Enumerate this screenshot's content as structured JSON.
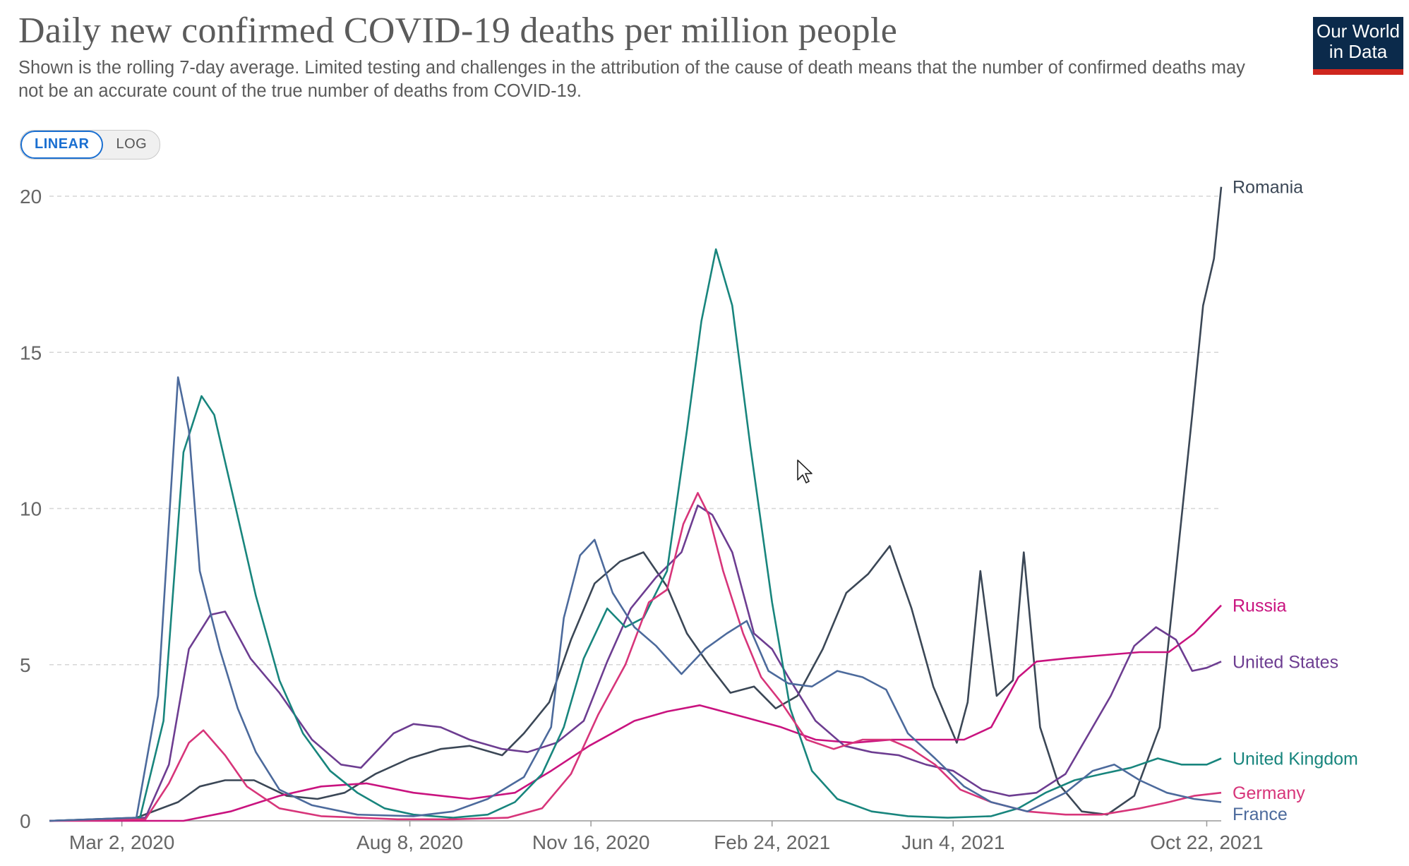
{
  "header": {
    "title": "Daily new confirmed COVID-19 deaths per million people",
    "subtitle": "Shown is the rolling 7-day average. Limited testing and challenges in the attribution of the cause of death means that the number of confirmed deaths may not be an accurate count of the true number of deaths from COVID-19.",
    "logo_line1": "Our World",
    "logo_line2": "in Data"
  },
  "controls": {
    "linear_label": "LINEAR",
    "log_label": "LOG",
    "selected": "LINEAR"
  },
  "chart_data": {
    "type": "line",
    "title": "Daily new confirmed COVID-19 deaths per million people",
    "xlabel": "",
    "ylabel": "",
    "x_range": [
      "2020-01-22",
      "2021-10-30"
    ],
    "ylim": [
      0,
      20
    ],
    "y_ticks": [
      0,
      5,
      10,
      15,
      20
    ],
    "x_ticks": [
      {
        "date": "2020-03-02",
        "label": "Mar 2, 2020"
      },
      {
        "date": "2020-08-08",
        "label": "Aug 8, 2020"
      },
      {
        "date": "2020-11-16",
        "label": "Nov 16, 2020"
      },
      {
        "date": "2021-02-24",
        "label": "Feb 24, 2021"
      },
      {
        "date": "2021-06-04",
        "label": "Jun 4, 2021"
      },
      {
        "date": "2021-10-22",
        "label": "Oct 22, 2021"
      }
    ],
    "grid": "horizontal dashed",
    "legend": "end-of-line labels",
    "series": [
      {
        "name": "Romania",
        "color": "#3b4756",
        "points": [
          [
            "2020-01-22",
            0
          ],
          [
            "2020-03-10",
            0.1
          ],
          [
            "2020-04-02",
            0.6
          ],
          [
            "2020-04-14",
            1.1
          ],
          [
            "2020-04-28",
            1.3
          ],
          [
            "2020-05-14",
            1.3
          ],
          [
            "2020-06-01",
            0.8
          ],
          [
            "2020-06-18",
            0.7
          ],
          [
            "2020-07-03",
            0.9
          ],
          [
            "2020-07-20",
            1.5
          ],
          [
            "2020-08-08",
            2.0
          ],
          [
            "2020-08-25",
            2.3
          ],
          [
            "2020-09-10",
            2.4
          ],
          [
            "2020-09-28",
            2.1
          ],
          [
            "2020-10-10",
            2.8
          ],
          [
            "2020-10-24",
            3.8
          ],
          [
            "2020-11-05",
            5.8
          ],
          [
            "2020-11-18",
            7.6
          ],
          [
            "2020-12-02",
            8.3
          ],
          [
            "2020-12-15",
            8.6
          ],
          [
            "2020-12-28",
            7.5
          ],
          [
            "2021-01-08",
            6.0
          ],
          [
            "2021-01-20",
            5.0
          ],
          [
            "2021-02-01",
            4.1
          ],
          [
            "2021-02-14",
            4.3
          ],
          [
            "2021-02-26",
            3.6
          ],
          [
            "2021-03-10",
            4.0
          ],
          [
            "2021-03-24",
            5.5
          ],
          [
            "2021-04-06",
            7.3
          ],
          [
            "2021-04-18",
            7.9
          ],
          [
            "2021-04-30",
            8.8
          ],
          [
            "2021-05-12",
            6.8
          ],
          [
            "2021-05-24",
            4.3
          ],
          [
            "2021-06-06",
            2.5
          ],
          [
            "2021-06-12",
            3.8
          ],
          [
            "2021-06-19",
            8.0
          ],
          [
            "2021-06-28",
            4.0
          ],
          [
            "2021-07-07",
            4.5
          ],
          [
            "2021-07-13",
            8.6
          ],
          [
            "2021-07-22",
            3.0
          ],
          [
            "2021-08-01",
            1.2
          ],
          [
            "2021-08-14",
            0.3
          ],
          [
            "2021-08-28",
            0.2
          ],
          [
            "2021-09-12",
            0.8
          ],
          [
            "2021-09-26",
            3.0
          ],
          [
            "2021-10-05",
            8.0
          ],
          [
            "2021-10-14",
            13.0
          ],
          [
            "2021-10-20",
            16.5
          ],
          [
            "2021-10-26",
            18.0
          ],
          [
            "2021-10-30",
            20.3
          ]
        ]
      },
      {
        "name": "Russia",
        "color": "#c9137f",
        "points": [
          [
            "2020-01-22",
            0
          ],
          [
            "2020-04-05",
            0
          ],
          [
            "2020-05-01",
            0.3
          ],
          [
            "2020-05-28",
            0.8
          ],
          [
            "2020-06-20",
            1.1
          ],
          [
            "2020-07-15",
            1.2
          ],
          [
            "2020-08-10",
            0.9
          ],
          [
            "2020-09-10",
            0.7
          ],
          [
            "2020-10-05",
            0.9
          ],
          [
            "2020-10-25",
            1.6
          ],
          [
            "2020-11-15",
            2.4
          ],
          [
            "2020-12-10",
            3.2
          ],
          [
            "2020-12-28",
            3.5
          ],
          [
            "2021-01-15",
            3.7
          ],
          [
            "2021-01-28",
            3.5
          ],
          [
            "2021-02-10",
            3.3
          ],
          [
            "2021-03-01",
            3.0
          ],
          [
            "2021-03-20",
            2.6
          ],
          [
            "2021-04-10",
            2.5
          ],
          [
            "2021-05-01",
            2.6
          ],
          [
            "2021-05-25",
            2.6
          ],
          [
            "2021-06-10",
            2.6
          ],
          [
            "2021-06-25",
            3.0
          ],
          [
            "2021-07-10",
            4.6
          ],
          [
            "2021-07-20",
            5.1
          ],
          [
            "2021-08-05",
            5.2
          ],
          [
            "2021-08-25",
            5.3
          ],
          [
            "2021-09-15",
            5.4
          ],
          [
            "2021-10-01",
            5.4
          ],
          [
            "2021-10-15",
            6.0
          ],
          [
            "2021-10-30",
            6.9
          ]
        ]
      },
      {
        "name": "United States",
        "color": "#6d3d91",
        "points": [
          [
            "2020-01-22",
            0
          ],
          [
            "2020-03-15",
            0.1
          ],
          [
            "2020-03-28",
            1.8
          ],
          [
            "2020-04-08",
            5.5
          ],
          [
            "2020-04-20",
            6.6
          ],
          [
            "2020-04-28",
            6.7
          ],
          [
            "2020-05-12",
            5.2
          ],
          [
            "2020-05-28",
            4.1
          ],
          [
            "2020-06-15",
            2.6
          ],
          [
            "2020-07-01",
            1.8
          ],
          [
            "2020-07-12",
            1.7
          ],
          [
            "2020-07-30",
            2.8
          ],
          [
            "2020-08-10",
            3.1
          ],
          [
            "2020-08-25",
            3.0
          ],
          [
            "2020-09-10",
            2.6
          ],
          [
            "2020-09-28",
            2.3
          ],
          [
            "2020-10-12",
            2.2
          ],
          [
            "2020-10-28",
            2.5
          ],
          [
            "2020-11-12",
            3.2
          ],
          [
            "2020-11-25",
            5.1
          ],
          [
            "2020-12-08",
            6.8
          ],
          [
            "2020-12-22",
            7.8
          ],
          [
            "2021-01-05",
            8.6
          ],
          [
            "2021-01-14",
            10.1
          ],
          [
            "2021-01-22",
            9.8
          ],
          [
            "2021-02-02",
            8.6
          ],
          [
            "2021-02-14",
            6.0
          ],
          [
            "2021-02-24",
            5.5
          ],
          [
            "2021-03-05",
            4.6
          ],
          [
            "2021-03-20",
            3.2
          ],
          [
            "2021-04-05",
            2.4
          ],
          [
            "2021-04-20",
            2.2
          ],
          [
            "2021-05-05",
            2.1
          ],
          [
            "2021-05-20",
            1.8
          ],
          [
            "2021-06-04",
            1.6
          ],
          [
            "2021-06-20",
            1.0
          ],
          [
            "2021-07-05",
            0.8
          ],
          [
            "2021-07-20",
            0.9
          ],
          [
            "2021-08-05",
            1.5
          ],
          [
            "2021-08-18",
            2.8
          ],
          [
            "2021-08-30",
            4.0
          ],
          [
            "2021-09-12",
            5.6
          ],
          [
            "2021-09-24",
            6.2
          ],
          [
            "2021-10-05",
            5.8
          ],
          [
            "2021-10-14",
            4.8
          ],
          [
            "2021-10-22",
            4.9
          ],
          [
            "2021-10-30",
            5.1
          ]
        ]
      },
      {
        "name": "United Kingdom",
        "color": "#18857d",
        "points": [
          [
            "2020-01-22",
            0
          ],
          [
            "2020-03-12",
            0.1
          ],
          [
            "2020-03-25",
            3.2
          ],
          [
            "2020-04-05",
            11.8
          ],
          [
            "2020-04-15",
            13.6
          ],
          [
            "2020-04-22",
            13.0
          ],
          [
            "2020-05-02",
            10.5
          ],
          [
            "2020-05-15",
            7.2
          ],
          [
            "2020-05-28",
            4.5
          ],
          [
            "2020-06-10",
            2.8
          ],
          [
            "2020-06-25",
            1.6
          ],
          [
            "2020-07-10",
            0.9
          ],
          [
            "2020-07-25",
            0.4
          ],
          [
            "2020-08-10",
            0.2
          ],
          [
            "2020-09-01",
            0.1
          ],
          [
            "2020-09-20",
            0.2
          ],
          [
            "2020-10-05",
            0.6
          ],
          [
            "2020-10-20",
            1.5
          ],
          [
            "2020-11-01",
            3.0
          ],
          [
            "2020-11-12",
            5.2
          ],
          [
            "2020-11-25",
            6.8
          ],
          [
            "2020-12-05",
            6.2
          ],
          [
            "2020-12-15",
            6.5
          ],
          [
            "2020-12-28",
            8.0
          ],
          [
            "2021-01-08",
            12.5
          ],
          [
            "2021-01-16",
            16.0
          ],
          [
            "2021-01-24",
            18.3
          ],
          [
            "2021-02-02",
            16.5
          ],
          [
            "2021-02-12",
            12.0
          ],
          [
            "2021-02-24",
            7.0
          ],
          [
            "2021-03-06",
            3.6
          ],
          [
            "2021-03-18",
            1.6
          ],
          [
            "2021-04-01",
            0.7
          ],
          [
            "2021-04-20",
            0.3
          ],
          [
            "2021-05-10",
            0.15
          ],
          [
            "2021-06-01",
            0.1
          ],
          [
            "2021-06-25",
            0.15
          ],
          [
            "2021-07-10",
            0.4
          ],
          [
            "2021-07-25",
            0.9
          ],
          [
            "2021-08-10",
            1.3
          ],
          [
            "2021-08-25",
            1.5
          ],
          [
            "2021-09-10",
            1.7
          ],
          [
            "2021-09-25",
            2.0
          ],
          [
            "2021-10-08",
            1.8
          ],
          [
            "2021-10-22",
            1.8
          ],
          [
            "2021-10-30",
            2.0
          ]
        ]
      },
      {
        "name": "Germany",
        "color": "#d7357a",
        "points": [
          [
            "2020-01-22",
            0
          ],
          [
            "2020-03-15",
            0.05
          ],
          [
            "2020-03-28",
            1.2
          ],
          [
            "2020-04-08",
            2.5
          ],
          [
            "2020-04-16",
            2.9
          ],
          [
            "2020-04-28",
            2.1
          ],
          [
            "2020-05-10",
            1.1
          ],
          [
            "2020-05-28",
            0.4
          ],
          [
            "2020-06-20",
            0.15
          ],
          [
            "2020-08-01",
            0.05
          ],
          [
            "2020-09-01",
            0.05
          ],
          [
            "2020-10-01",
            0.1
          ],
          [
            "2020-10-20",
            0.4
          ],
          [
            "2020-11-05",
            1.5
          ],
          [
            "2020-11-20",
            3.4
          ],
          [
            "2020-12-05",
            5.0
          ],
          [
            "2020-12-18",
            7.0
          ],
          [
            "2020-12-28",
            7.4
          ],
          [
            "2021-01-06",
            9.5
          ],
          [
            "2021-01-14",
            10.5
          ],
          [
            "2021-01-20",
            9.8
          ],
          [
            "2021-01-28",
            8.0
          ],
          [
            "2021-02-08",
            6.0
          ],
          [
            "2021-02-18",
            4.6
          ],
          [
            "2021-03-01",
            3.8
          ],
          [
            "2021-03-15",
            2.6
          ],
          [
            "2021-03-30",
            2.3
          ],
          [
            "2021-04-15",
            2.6
          ],
          [
            "2021-04-30",
            2.6
          ],
          [
            "2021-05-12",
            2.3
          ],
          [
            "2021-05-25",
            1.8
          ],
          [
            "2021-06-08",
            1.0
          ],
          [
            "2021-06-25",
            0.6
          ],
          [
            "2021-07-15",
            0.3
          ],
          [
            "2021-08-05",
            0.2
          ],
          [
            "2021-08-25",
            0.2
          ],
          [
            "2021-09-15",
            0.4
          ],
          [
            "2021-10-01",
            0.6
          ],
          [
            "2021-10-15",
            0.8
          ],
          [
            "2021-10-30",
            0.9
          ]
        ]
      },
      {
        "name": "France",
        "color": "#4c6a9c",
        "points": [
          [
            "2020-01-22",
            0
          ],
          [
            "2020-03-10",
            0.1
          ],
          [
            "2020-03-22",
            4.0
          ],
          [
            "2020-04-02",
            14.2
          ],
          [
            "2020-04-08",
            12.5
          ],
          [
            "2020-04-14",
            8.0
          ],
          [
            "2020-04-25",
            5.5
          ],
          [
            "2020-05-05",
            3.6
          ],
          [
            "2020-05-15",
            2.2
          ],
          [
            "2020-05-28",
            1.0
          ],
          [
            "2020-06-15",
            0.5
          ],
          [
            "2020-07-10",
            0.2
          ],
          [
            "2020-08-10",
            0.15
          ],
          [
            "2020-09-01",
            0.3
          ],
          [
            "2020-09-20",
            0.7
          ],
          [
            "2020-10-10",
            1.4
          ],
          [
            "2020-10-25",
            3.0
          ],
          [
            "2020-11-01",
            6.5
          ],
          [
            "2020-11-10",
            8.5
          ],
          [
            "2020-11-18",
            9.0
          ],
          [
            "2020-11-28",
            7.3
          ],
          [
            "2020-12-10",
            6.2
          ],
          [
            "2020-12-22",
            5.6
          ],
          [
            "2021-01-05",
            4.7
          ],
          [
            "2021-01-18",
            5.5
          ],
          [
            "2021-01-30",
            6.0
          ],
          [
            "2021-02-10",
            6.4
          ],
          [
            "2021-02-22",
            4.8
          ],
          [
            "2021-03-05",
            4.4
          ],
          [
            "2021-03-18",
            4.3
          ],
          [
            "2021-04-01",
            4.8
          ],
          [
            "2021-04-15",
            4.6
          ],
          [
            "2021-04-28",
            4.2
          ],
          [
            "2021-05-10",
            2.8
          ],
          [
            "2021-05-25",
            2.0
          ],
          [
            "2021-06-10",
            1.1
          ],
          [
            "2021-06-25",
            0.6
          ],
          [
            "2021-07-15",
            0.3
          ],
          [
            "2021-08-05",
            0.9
          ],
          [
            "2021-08-20",
            1.6
          ],
          [
            "2021-09-01",
            1.8
          ],
          [
            "2021-09-15",
            1.3
          ],
          [
            "2021-09-30",
            0.9
          ],
          [
            "2021-10-15",
            0.7
          ],
          [
            "2021-10-30",
            0.6
          ]
        ]
      }
    ],
    "end_labels": [
      {
        "series": "Romania",
        "label": "Romania",
        "value": 20.3
      },
      {
        "series": "Russia",
        "label": "Russia",
        "value": 6.9
      },
      {
        "series": "United States",
        "label": "United States",
        "value": 5.1
      },
      {
        "series": "United Kingdom",
        "label": "United Kingdom",
        "value": 2.0
      },
      {
        "series": "Germany",
        "label": "Germany",
        "value": 0.9
      },
      {
        "series": "France",
        "label": "France",
        "value": 0.6
      }
    ]
  }
}
